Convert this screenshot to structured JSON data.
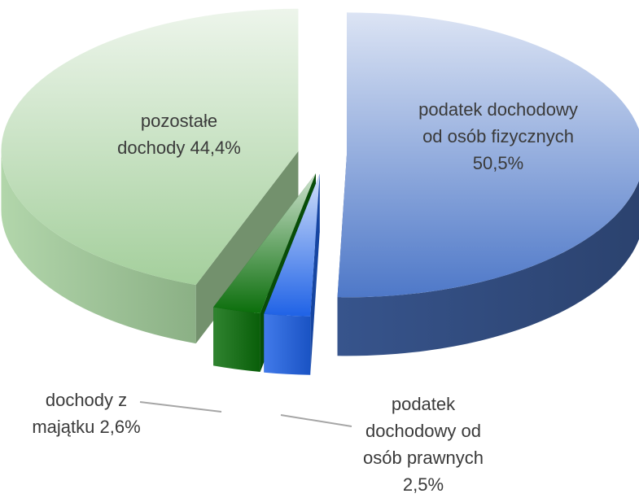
{
  "chart_data": {
    "type": "pie3d",
    "categories": [
      "podatek dochodowy od osób fizycznych",
      "podatek dochodowy od osób prawnych",
      "dochody z majątku",
      "pozostałe dochody"
    ],
    "values": [
      50.5,
      2.5,
      2.6,
      44.4
    ],
    "value_labels": [
      "50,5%",
      "2,5%",
      "2,6%",
      "44,4%"
    ],
    "colors": [
      "#4e78c8",
      "#1f62e6",
      "#0b6e0b",
      "#a4cf9c"
    ]
  }
}
